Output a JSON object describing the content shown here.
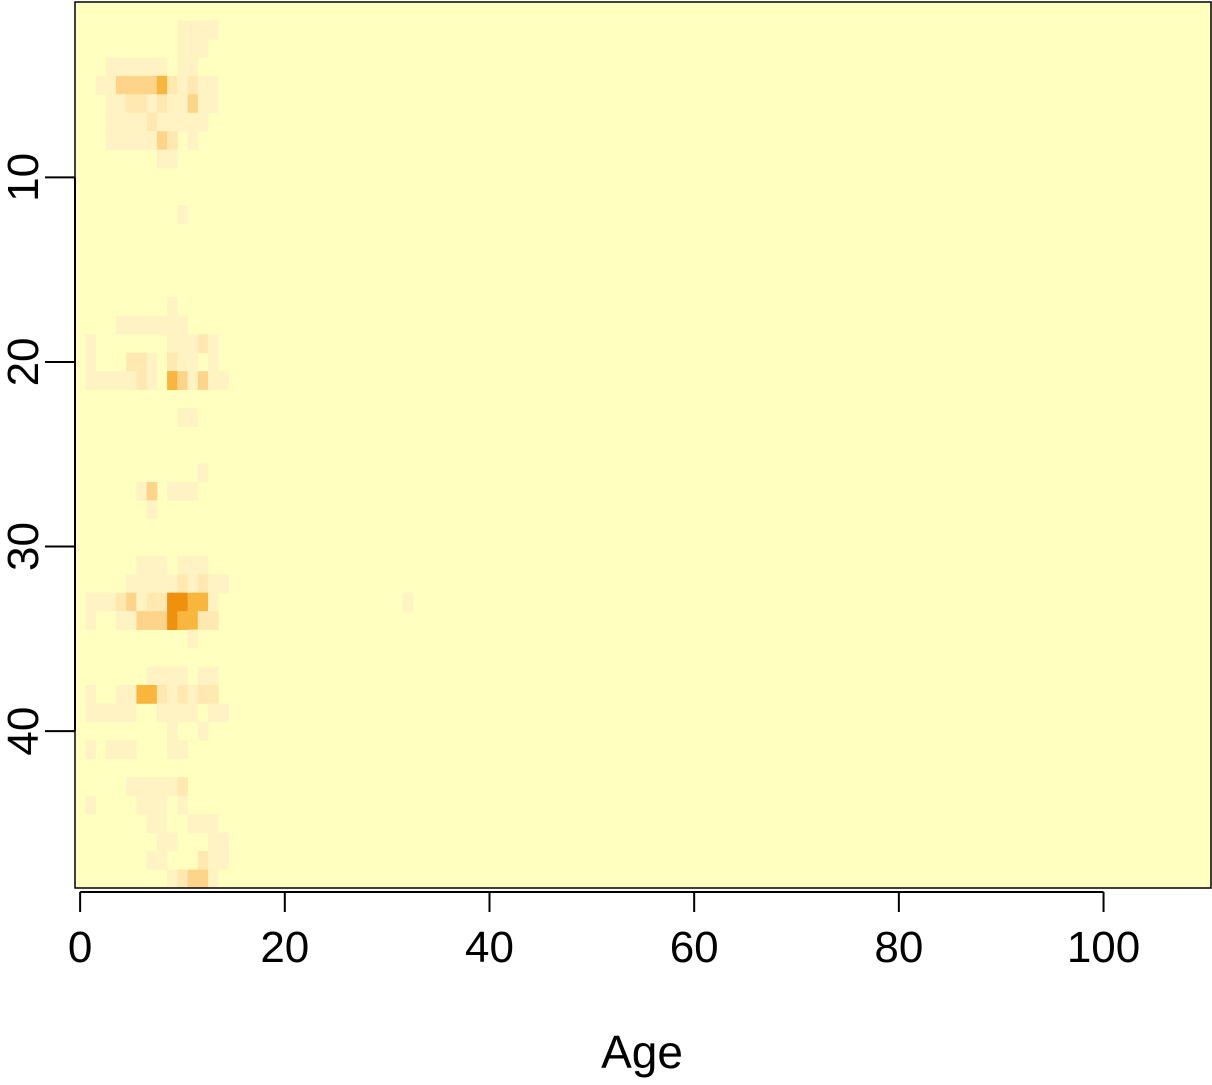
{
  "chart_data": {
    "type": "heatmap",
    "title": "",
    "xlabel": "Age",
    "ylabel": "",
    "xlim": [
      -0.5,
      110.5
    ],
    "ylim": [
      0.5,
      48.5
    ],
    "y_reversed": true,
    "x_ticks": [
      0,
      20,
      40,
      60,
      80,
      100
    ],
    "x_tick_labels": [
      "0",
      "20",
      "40",
      "60",
      "80",
      "100"
    ],
    "y_ticks": [
      10,
      20,
      30,
      40
    ],
    "y_tick_labels": [
      "10",
      "20",
      "30",
      "40"
    ],
    "grid": false,
    "legend": "none",
    "background_color": "#FFFFBF",
    "palette": [
      "#FFFFBF",
      "#FFF3C4",
      "#FFE9B0",
      "#FDD48A",
      "#F8B63C",
      "#F0900F"
    ],
    "cells": [
      [
        10,
        2,
        1
      ],
      [
        11,
        2,
        1
      ],
      [
        12,
        2,
        1
      ],
      [
        13,
        2,
        1
      ],
      [
        10,
        3,
        1
      ],
      [
        11,
        3,
        1
      ],
      [
        12,
        3,
        1
      ],
      [
        3,
        4,
        1
      ],
      [
        4,
        4,
        1
      ],
      [
        5,
        4,
        1
      ],
      [
        6,
        4,
        1
      ],
      [
        7,
        4,
        1
      ],
      [
        8,
        4,
        1
      ],
      [
        10,
        4,
        1
      ],
      [
        11,
        4,
        1
      ],
      [
        2,
        5,
        1
      ],
      [
        3,
        5,
        1
      ],
      [
        4,
        5,
        3
      ],
      [
        5,
        5,
        3
      ],
      [
        6,
        5,
        3
      ],
      [
        7,
        5,
        3
      ],
      [
        8,
        5,
        4
      ],
      [
        9,
        5,
        2
      ],
      [
        10,
        5,
        1
      ],
      [
        11,
        5,
        2
      ],
      [
        12,
        5,
        1
      ],
      [
        13,
        5,
        1
      ],
      [
        3,
        6,
        1
      ],
      [
        4,
        6,
        1
      ],
      [
        5,
        6,
        2
      ],
      [
        6,
        6,
        2
      ],
      [
        7,
        6,
        1
      ],
      [
        8,
        6,
        2
      ],
      [
        9,
        6,
        1
      ],
      [
        10,
        6,
        1
      ],
      [
        11,
        6,
        3
      ],
      [
        12,
        6,
        1
      ],
      [
        13,
        6,
        1
      ],
      [
        3,
        7,
        1
      ],
      [
        4,
        7,
        1
      ],
      [
        5,
        7,
        1
      ],
      [
        6,
        7,
        1
      ],
      [
        7,
        7,
        2
      ],
      [
        8,
        7,
        1
      ],
      [
        9,
        7,
        1
      ],
      [
        10,
        7,
        1
      ],
      [
        11,
        7,
        1
      ],
      [
        12,
        7,
        1
      ],
      [
        3,
        8,
        1
      ],
      [
        4,
        8,
        1
      ],
      [
        5,
        8,
        1
      ],
      [
        6,
        8,
        1
      ],
      [
        7,
        8,
        1
      ],
      [
        8,
        8,
        3
      ],
      [
        9,
        8,
        2
      ],
      [
        11,
        8,
        1
      ],
      [
        8,
        9,
        1
      ],
      [
        9,
        9,
        1
      ],
      [
        10,
        12,
        1
      ],
      [
        9,
        17,
        1
      ],
      [
        4,
        18,
        1
      ],
      [
        5,
        18,
        1
      ],
      [
        6,
        18,
        1
      ],
      [
        7,
        18,
        1
      ],
      [
        8,
        18,
        1
      ],
      [
        9,
        18,
        1
      ],
      [
        10,
        18,
        1
      ],
      [
        1,
        19,
        1
      ],
      [
        9,
        19,
        1
      ],
      [
        10,
        19,
        1
      ],
      [
        11,
        19,
        1
      ],
      [
        12,
        19,
        2
      ],
      [
        13,
        19,
        1
      ],
      [
        1,
        20,
        1
      ],
      [
        5,
        20,
        2
      ],
      [
        6,
        20,
        2
      ],
      [
        7,
        20,
        1
      ],
      [
        9,
        20,
        2
      ],
      [
        10,
        20,
        1
      ],
      [
        11,
        20,
        1
      ],
      [
        13,
        20,
        1
      ],
      [
        1,
        21,
        1
      ],
      [
        2,
        21,
        1
      ],
      [
        3,
        21,
        1
      ],
      [
        4,
        21,
        1
      ],
      [
        5,
        21,
        1
      ],
      [
        6,
        21,
        2
      ],
      [
        7,
        21,
        1
      ],
      [
        9,
        21,
        4
      ],
      [
        10,
        21,
        3
      ],
      [
        11,
        21,
        1
      ],
      [
        12,
        21,
        3
      ],
      [
        13,
        21,
        1
      ],
      [
        14,
        21,
        1
      ],
      [
        10,
        23,
        1
      ],
      [
        11,
        23,
        1
      ],
      [
        12,
        26,
        1
      ],
      [
        6,
        27,
        1
      ],
      [
        7,
        27,
        3
      ],
      [
        9,
        27,
        1
      ],
      [
        10,
        27,
        1
      ],
      [
        11,
        27,
        1
      ],
      [
        7,
        28,
        1
      ],
      [
        6,
        31,
        1
      ],
      [
        7,
        31,
        1
      ],
      [
        8,
        31,
        1
      ],
      [
        10,
        31,
        1
      ],
      [
        11,
        31,
        1
      ],
      [
        12,
        31,
        1
      ],
      [
        5,
        32,
        1
      ],
      [
        6,
        32,
        1
      ],
      [
        7,
        32,
        1
      ],
      [
        8,
        32,
        1
      ],
      [
        9,
        32,
        1
      ],
      [
        10,
        32,
        2
      ],
      [
        11,
        32,
        1
      ],
      [
        12,
        32,
        2
      ],
      [
        13,
        32,
        1
      ],
      [
        14,
        32,
        1
      ],
      [
        1,
        33,
        1
      ],
      [
        2,
        33,
        1
      ],
      [
        3,
        33,
        1
      ],
      [
        4,
        33,
        2
      ],
      [
        5,
        33,
        3
      ],
      [
        6,
        33,
        1
      ],
      [
        7,
        33,
        2
      ],
      [
        8,
        33,
        2
      ],
      [
        9,
        33,
        5
      ],
      [
        10,
        33,
        5
      ],
      [
        11,
        33,
        4
      ],
      [
        12,
        33,
        4
      ],
      [
        13,
        33,
        1
      ],
      [
        32,
        33,
        1
      ],
      [
        1,
        34,
        1
      ],
      [
        4,
        34,
        1
      ],
      [
        5,
        34,
        1
      ],
      [
        6,
        34,
        3
      ],
      [
        7,
        34,
        3
      ],
      [
        8,
        34,
        3
      ],
      [
        9,
        34,
        5
      ],
      [
        10,
        34,
        4
      ],
      [
        11,
        34,
        4
      ],
      [
        12,
        34,
        2
      ],
      [
        13,
        34,
        2
      ],
      [
        11,
        35,
        1
      ],
      [
        7,
        37,
        1
      ],
      [
        8,
        37,
        1
      ],
      [
        9,
        37,
        1
      ],
      [
        10,
        37,
        1
      ],
      [
        12,
        37,
        1
      ],
      [
        13,
        37,
        1
      ],
      [
        1,
        38,
        1
      ],
      [
        4,
        38,
        1
      ],
      [
        5,
        38,
        1
      ],
      [
        6,
        38,
        4
      ],
      [
        7,
        38,
        4
      ],
      [
        8,
        38,
        2
      ],
      [
        9,
        38,
        1
      ],
      [
        10,
        38,
        2
      ],
      [
        11,
        38,
        1
      ],
      [
        12,
        38,
        2
      ],
      [
        13,
        38,
        2
      ],
      [
        1,
        39,
        1
      ],
      [
        2,
        39,
        1
      ],
      [
        3,
        39,
        1
      ],
      [
        4,
        39,
        1
      ],
      [
        5,
        39,
        1
      ],
      [
        8,
        39,
        1
      ],
      [
        9,
        39,
        1
      ],
      [
        10,
        39,
        1
      ],
      [
        11,
        39,
        1
      ],
      [
        13,
        39,
        1
      ],
      [
        14,
        39,
        1
      ],
      [
        9,
        40,
        1
      ],
      [
        12,
        40,
        1
      ],
      [
        1,
        41,
        1
      ],
      [
        3,
        41,
        1
      ],
      [
        4,
        41,
        1
      ],
      [
        5,
        41,
        1
      ],
      [
        9,
        41,
        1
      ],
      [
        10,
        41,
        1
      ],
      [
        5,
        43,
        1
      ],
      [
        6,
        43,
        1
      ],
      [
        7,
        43,
        1
      ],
      [
        8,
        43,
        1
      ],
      [
        9,
        43,
        1
      ],
      [
        10,
        43,
        2
      ],
      [
        1,
        44,
        1
      ],
      [
        6,
        44,
        1
      ],
      [
        7,
        44,
        1
      ],
      [
        8,
        44,
        1
      ],
      [
        10,
        44,
        1
      ],
      [
        7,
        45,
        1
      ],
      [
        8,
        45,
        1
      ],
      [
        11,
        45,
        1
      ],
      [
        12,
        45,
        1
      ],
      [
        13,
        45,
        1
      ],
      [
        8,
        46,
        1
      ],
      [
        9,
        46,
        1
      ],
      [
        13,
        46,
        1
      ],
      [
        14,
        46,
        1
      ],
      [
        7,
        47,
        1
      ],
      [
        8,
        47,
        1
      ],
      [
        12,
        47,
        2
      ],
      [
        13,
        47,
        1
      ],
      [
        14,
        47,
        1
      ],
      [
        9,
        48,
        1
      ],
      [
        10,
        48,
        2
      ],
      [
        11,
        48,
        3
      ],
      [
        12,
        48,
        3
      ],
      [
        13,
        48,
        1
      ],
      [
        10,
        49,
        1
      ],
      [
        108,
        49,
        1
      ],
      [
        109,
        49,
        1
      ],
      [
        110,
        49,
        1
      ]
    ]
  }
}
